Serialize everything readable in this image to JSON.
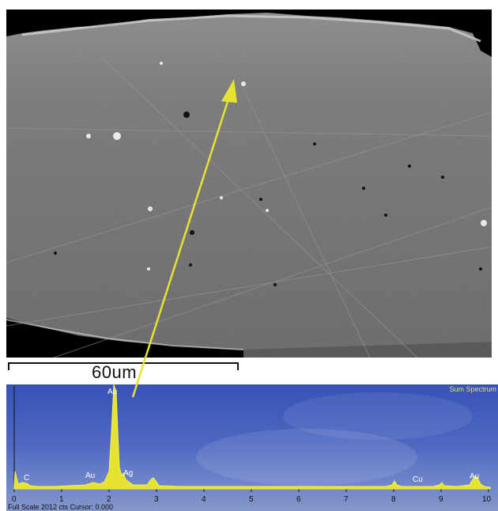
{
  "scale_bar": {
    "label": "60um"
  },
  "eds_spectrum": {
    "title": "Sum Spectrum",
    "footer": "Full Scale 2012 cts Cursor: 0.000",
    "x_ticks": [
      "0",
      "1",
      "2",
      "3",
      "4",
      "5",
      "6",
      "7",
      "8",
      "9",
      "10"
    ],
    "peak_labels": [
      "C",
      "Au",
      "Au",
      "Ag",
      "Cu",
      "Au"
    ]
  },
  "colors": {
    "arrow": "#e6e330",
    "spectrum_fill": "#e6e330",
    "spectrum_background": "#4a63c2"
  }
}
